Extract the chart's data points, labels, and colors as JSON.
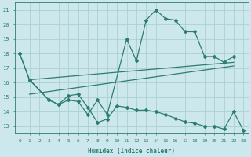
{
  "xlabel": "Humidex (Indice chaleur)",
  "bg_color": "#cce8ec",
  "line_color": "#2d7d6e",
  "grid_color": "#aacfd4",
  "xlim": [
    -0.5,
    23.5
  ],
  "ylim": [
    12.5,
    21.5
  ],
  "yticks": [
    13,
    14,
    15,
    16,
    17,
    18,
    19,
    20,
    21
  ],
  "xticks": [
    0,
    1,
    2,
    3,
    4,
    5,
    6,
    7,
    8,
    9,
    10,
    11,
    12,
    13,
    14,
    15,
    16,
    17,
    18,
    19,
    20,
    21,
    22,
    23
  ],
  "line1_x": [
    0,
    1,
    3,
    4,
    5,
    6,
    7,
    8,
    9,
    11,
    12,
    13,
    14,
    15,
    16,
    17,
    18,
    19,
    20,
    21,
    22
  ],
  "line1_y": [
    18,
    16.2,
    14.8,
    14.5,
    14.8,
    14.7,
    13.8,
    14.8,
    13.8,
    19.0,
    17.5,
    20.3,
    21.0,
    20.4,
    20.3,
    19.5,
    19.5,
    17.8,
    17.8,
    17.4,
    17.8
  ],
  "line2_x": [
    1,
    22
  ],
  "line2_y": [
    16.2,
    17.4
  ],
  "line3_x": [
    1,
    22
  ],
  "line3_y": [
    15.2,
    17.15
  ],
  "line4_x": [
    0,
    1,
    3,
    4,
    5,
    6,
    7,
    8,
    9,
    10,
    11,
    12,
    13,
    14,
    15,
    16,
    17,
    18,
    19,
    20,
    21,
    22,
    23
  ],
  "line4_y": [
    18,
    16.2,
    14.8,
    14.5,
    15.1,
    15.2,
    14.3,
    13.25,
    13.5,
    14.4,
    14.3,
    14.1,
    14.1,
    14.0,
    13.8,
    13.55,
    13.3,
    13.2,
    13.0,
    13.0,
    12.8,
    14.0,
    12.7
  ]
}
